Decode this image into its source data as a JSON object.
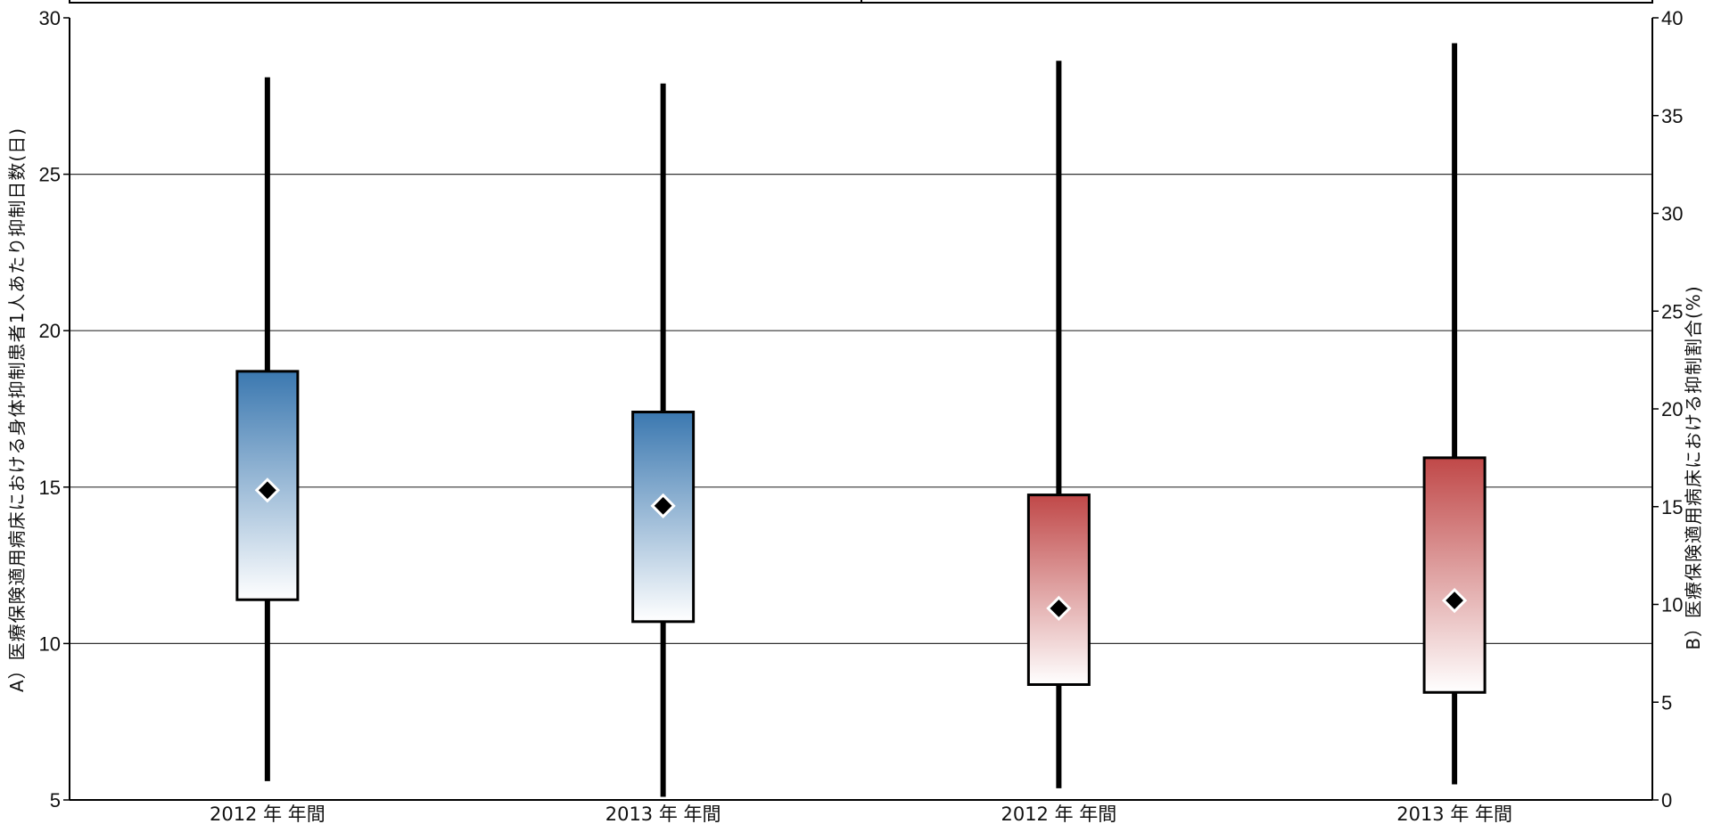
{
  "chart_data": {
    "type": "boxplot",
    "categories": [
      "2012 年 年間",
      "2013 年 年間",
      "2012 年 年間",
      "2013 年 年間"
    ],
    "left_axis": {
      "label": "A）医療保険適用病床における身体抑制患者1人あたり抑制日数(日)",
      "ylim": [
        5,
        30
      ],
      "ticks": [
        5,
        10,
        15,
        20,
        25,
        30
      ]
    },
    "right_axis": {
      "label": "B）医療保険適用病床における抑制割合(%)",
      "ylim": [
        0,
        40
      ],
      "ticks": [
        0,
        5,
        10,
        15,
        20,
        25,
        30,
        35,
        40
      ]
    },
    "grid": true,
    "series": [
      {
        "axis": "left",
        "color": "#3b78b0",
        "boxes": [
          {
            "whisker_low": 5.6,
            "q1": 11.4,
            "mean": 14.9,
            "q3": 18.7,
            "whisker_high": 28.1
          },
          {
            "whisker_low": 5.1,
            "q1": 10.7,
            "mean": 14.4,
            "q3": 17.4,
            "whisker_high": 27.9
          }
        ]
      },
      {
        "axis": "right",
        "color": "#c04848",
        "boxes": [
          {
            "whisker_low": 0.6,
            "q1": 5.9,
            "mean": 9.8,
            "q3": 15.6,
            "whisker_high": 37.8
          },
          {
            "whisker_low": 0.8,
            "q1": 5.5,
            "mean": 10.2,
            "q3": 17.5,
            "whisker_high": 38.7
          }
        ]
      }
    ]
  }
}
